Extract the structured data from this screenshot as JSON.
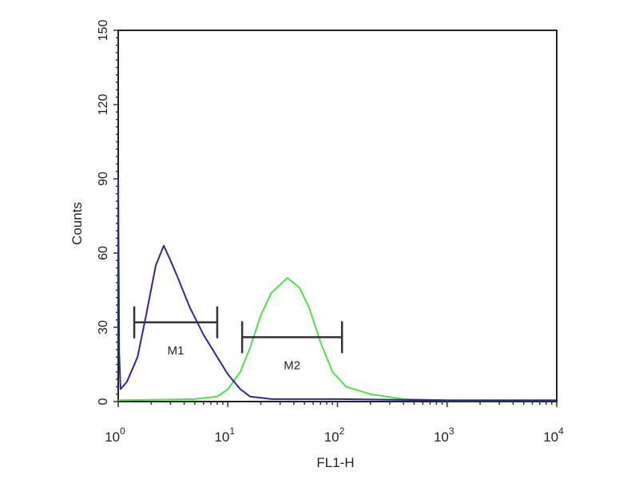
{
  "chart_data": {
    "type": "line",
    "title": "",
    "xlabel": "FL1-H",
    "ylabel": "Counts",
    "x_scale": "log",
    "xlim": [
      1,
      10000
    ],
    "ylim": [
      0,
      150
    ],
    "grid": false,
    "y_ticks": [
      "0",
      "30",
      "60",
      "90",
      "120",
      "150"
    ],
    "x_ticks": [
      {
        "base": "10",
        "exp": "0",
        "value": 1
      },
      {
        "base": "10",
        "exp": "1",
        "value": 10
      },
      {
        "base": "10",
        "exp": "2",
        "value": 100
      },
      {
        "base": "10",
        "exp": "3",
        "value": 1000
      },
      {
        "base": "10",
        "exp": "4",
        "value": 10000
      }
    ],
    "series": [
      {
        "color": "#2a2a9a",
        "points": [
          [
            1,
            90
          ],
          [
            1.02,
            20
          ],
          [
            1.05,
            5
          ],
          [
            1.2,
            8
          ],
          [
            1.5,
            18
          ],
          [
            1.8,
            35
          ],
          [
            2.2,
            55
          ],
          [
            2.6,
            63
          ],
          [
            3,
            57
          ],
          [
            3.5,
            50
          ],
          [
            4.5,
            38
          ],
          [
            6,
            27
          ],
          [
            8,
            18
          ],
          [
            10,
            11
          ],
          [
            13,
            5
          ],
          [
            16,
            2
          ],
          [
            25,
            1
          ],
          [
            100,
            1
          ],
          [
            1000,
            0.5
          ],
          [
            10000,
            0.5
          ]
        ]
      },
      {
        "color": "#4ee04e",
        "points": [
          [
            1,
            0.5
          ],
          [
            5,
            1
          ],
          [
            8,
            2
          ],
          [
            10,
            5
          ],
          [
            13,
            12
          ],
          [
            16,
            22
          ],
          [
            20,
            35
          ],
          [
            25,
            44
          ],
          [
            35,
            50
          ],
          [
            45,
            46
          ],
          [
            55,
            38
          ],
          [
            70,
            24
          ],
          [
            90,
            12
          ],
          [
            120,
            6
          ],
          [
            200,
            3
          ],
          [
            400,
            1
          ],
          [
            1000,
            0.5
          ],
          [
            10000,
            0.5
          ]
        ]
      }
    ],
    "markers": [
      {
        "label": "M1",
        "x_start": 1.4,
        "x_end": 8,
        "y": 32
      },
      {
        "label": "M2",
        "x_start": 13.5,
        "x_end": 110,
        "y": 26
      }
    ]
  }
}
